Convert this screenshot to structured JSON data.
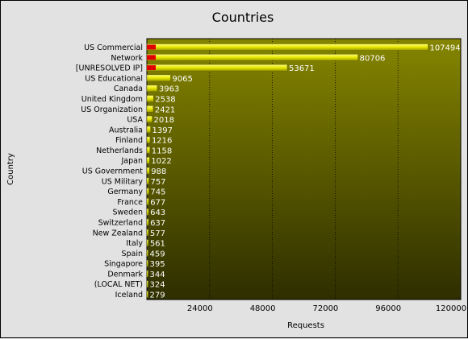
{
  "chart_data": {
    "type": "bar",
    "orientation": "horizontal",
    "title": "Countries",
    "xlabel": "Requests",
    "ylabel": "Country",
    "xlim": [
      0,
      120000
    ],
    "xticks": [
      "24000",
      "48000",
      "72000",
      "96000",
      "120000"
    ],
    "grid": true,
    "categories": [
      "US Commercial",
      "Network",
      "[UNRESOLVED IP]",
      "US Educational",
      "Canada",
      "United Kingdom",
      "US Organization",
      "USA",
      "Australia",
      "Finland",
      "Netherlands",
      "Japan",
      "US Government",
      "US Military",
      "Germany",
      "France",
      "Sweden",
      "Switzerland",
      "New Zealand",
      "Italy",
      "Spain",
      "Singapore",
      "Denmark",
      "(LOCAL NET)",
      "Iceland"
    ],
    "values": [
      107494,
      80706,
      53671,
      9065,
      3963,
      2538,
      2421,
      2018,
      1397,
      1216,
      1158,
      1022,
      988,
      757,
      745,
      677,
      643,
      637,
      577,
      561,
      459,
      395,
      344,
      324,
      279
    ],
    "colors": {
      "plot_top": "#858500",
      "plot_bottom": "#2e2e00",
      "bar": "#e8e800",
      "bar_highlight": "#ffff80",
      "marker": "#e00000",
      "value_text": "#ffffff"
    }
  }
}
